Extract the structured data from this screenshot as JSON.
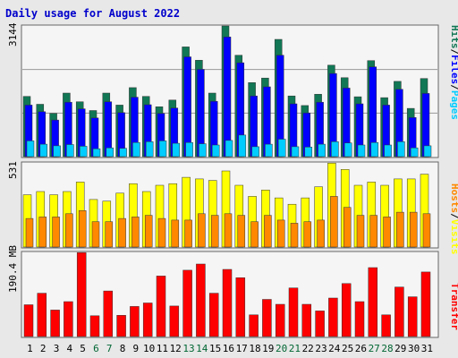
{
  "colors": {
    "background": "#e8e8e8",
    "panel": "#f5f5f5",
    "frame": "#666666",
    "title": "#0000cc",
    "hits": "#117755",
    "files": "#0000ff",
    "pages": "#00ccff",
    "visits": "#ffff00",
    "hosts": "#ff8800",
    "transfer": "#ff0000",
    "weekday_tick": "#000000",
    "weekend_tick": "#006633"
  },
  "chart_data": [
    {
      "type": "bar",
      "title": "Daily usage for August 2022",
      "y_max_label": "3144",
      "side_label_parts": [
        {
          "text": "Hits",
          "key": "hits"
        },
        {
          "text": "/",
          "key": "sep"
        },
        {
          "text": "Files",
          "key": "files"
        },
        {
          "text": "/",
          "key": "sep"
        },
        {
          "text": "Pages",
          "key": "pages"
        }
      ],
      "ylim": [
        0,
        3144
      ],
      "grid": true,
      "categories": [
        "1",
        "2",
        "3",
        "4",
        "5",
        "6",
        "7",
        "8",
        "9",
        "10",
        "11",
        "12",
        "13",
        "14",
        "15",
        "16",
        "17",
        "18",
        "19",
        "20",
        "21",
        "22",
        "23",
        "24",
        "25",
        "26",
        "27",
        "28",
        "29",
        "30",
        "31"
      ],
      "weekend_days": [
        "6",
        "7",
        "13",
        "14",
        "20",
        "21",
        "27",
        "28"
      ],
      "series": [
        {
          "name": "Hits",
          "key": "hits",
          "values": [
            1450,
            1260,
            1040,
            1530,
            1320,
            1110,
            1530,
            1240,
            1660,
            1450,
            1200,
            1360,
            2640,
            2320,
            1530,
            3144,
            2440,
            1780,
            1890,
            2820,
            1460,
            1230,
            1500,
            2200,
            1900,
            1440,
            2310,
            1420,
            1810,
            1160,
            1880
          ]
        },
        {
          "name": "Files",
          "key": "files",
          "values": [
            1240,
            1080,
            880,
            1310,
            1150,
            930,
            1320,
            1060,
            1430,
            1250,
            1040,
            1170,
            2400,
            2100,
            1330,
            2880,
            2260,
            1460,
            1680,
            2440,
            1270,
            1050,
            1310,
            2000,
            1650,
            1270,
            2160,
            1240,
            1620,
            940,
            1520
          ]
        },
        {
          "name": "Pages",
          "key": "pages",
          "values": [
            380,
            300,
            260,
            290,
            250,
            190,
            210,
            200,
            340,
            360,
            380,
            320,
            340,
            310,
            280,
            390,
            520,
            240,
            300,
            420,
            240,
            230,
            300,
            360,
            330,
            280,
            340,
            280,
            360,
            210,
            260
          ]
        }
      ]
    },
    {
      "type": "bar",
      "y_max_label": "531",
      "side_label_parts": [
        {
          "text": "Hosts",
          "key": "hosts"
        },
        {
          "text": "/",
          "key": "sep"
        },
        {
          "text": "Visits",
          "key": "visits"
        }
      ],
      "ylim": [
        0,
        531
      ],
      "series": [
        {
          "name": "Visits",
          "key": "visits",
          "values": [
            330,
            350,
            330,
            350,
            410,
            300,
            290,
            340,
            400,
            350,
            390,
            400,
            440,
            430,
            420,
            480,
            390,
            320,
            360,
            310,
            270,
            310,
            380,
            530,
            490,
            390,
            410,
            390,
            430,
            430,
            460
          ]
        },
        {
          "name": "Hosts",
          "key": "hosts",
          "values": [
            180,
            190,
            190,
            210,
            230,
            160,
            160,
            180,
            190,
            200,
            180,
            170,
            170,
            210,
            200,
            210,
            200,
            160,
            200,
            170,
            150,
            160,
            170,
            320,
            250,
            200,
            200,
            190,
            220,
            220,
            210
          ]
        }
      ]
    },
    {
      "type": "bar",
      "y_max_label": "190.4 MB",
      "side_label_parts": [
        {
          "text": "Transfer",
          "key": "transfer"
        }
      ],
      "ylim": [
        0,
        190.4
      ],
      "series": [
        {
          "name": "Transfer",
          "key": "transfer",
          "values": [
            72,
            98,
            60,
            79,
            190,
            47,
            103,
            48,
            68,
            76,
            137,
            69,
            150,
            164,
            98,
            152,
            133,
            49,
            84,
            73,
            110,
            73,
            58,
            87,
            120,
            79,
            156,
            49,
            112,
            90,
            146
          ]
        }
      ]
    }
  ]
}
